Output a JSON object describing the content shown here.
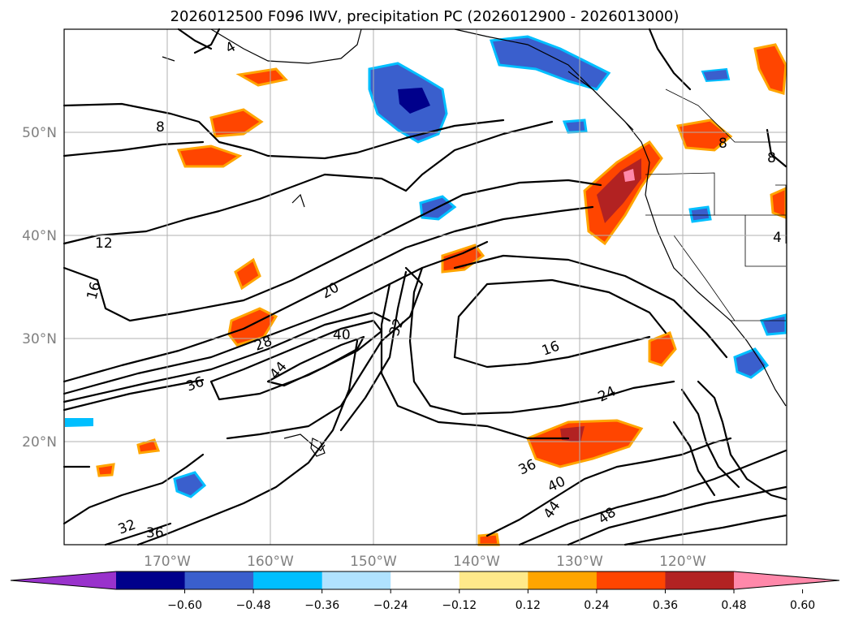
{
  "title": "2026012500 F096 IWV, precipitation PC (2026012900 - 2026013000)",
  "map": {
    "lon_labels": [
      "170°W",
      "160°W",
      "150°W",
      "140°W",
      "130°W",
      "120°W"
    ],
    "lat_labels": [
      "50°N",
      "40°N",
      "30°N",
      "20°N"
    ],
    "gridlines": true
  },
  "contour_labels": [
    "4",
    "8",
    "12",
    "16",
    "20",
    "28",
    "40",
    "32",
    "44",
    "36",
    "16",
    "24",
    "36",
    "40",
    "44",
    "48",
    "32",
    "36",
    "8",
    "8",
    "4"
  ],
  "colorbar": {
    "ticks": [
      "−0.60",
      "−0.48",
      "−0.36",
      "−0.24",
      "−0.12",
      "0.12",
      "0.24",
      "0.36",
      "0.48",
      "0.60"
    ],
    "colors": [
      "#9932CC",
      "#00008B",
      "#3A5FCD",
      "#00BFFF",
      "#B0E2FF",
      "#FFFFFF",
      "#FFE98A",
      "#FFA500",
      "#FF4500",
      "#B22222",
      "#FF88AA"
    ],
    "extend": "both"
  }
}
